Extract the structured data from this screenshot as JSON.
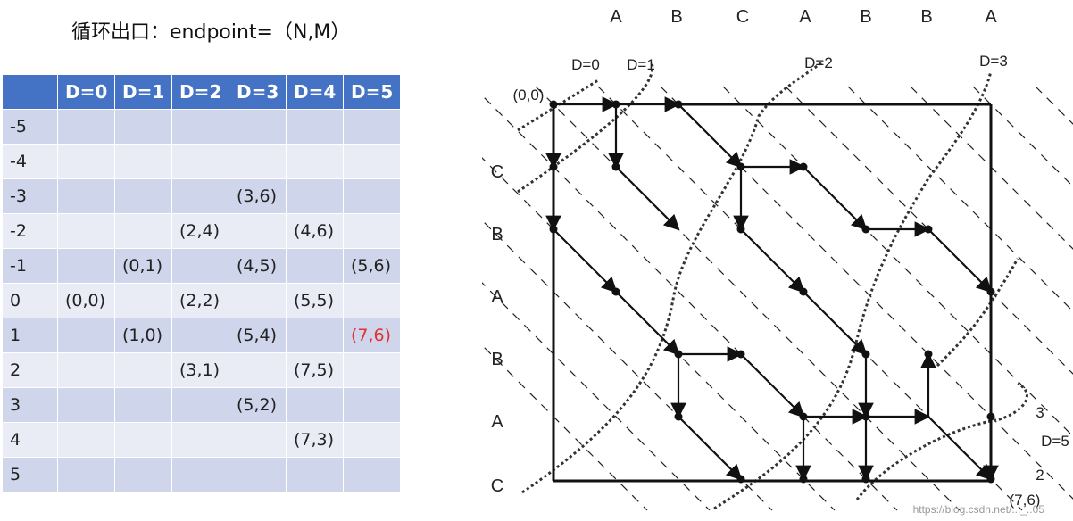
{
  "title": "循环出口：endpoint=（N,M）",
  "table": {
    "headers": [
      "",
      "D=0",
      "D=1",
      "D=2",
      "D=3",
      "D=4",
      "D=5"
    ],
    "rows": [
      {
        "k": "-5",
        "cells": [
          "",
          "",
          "",
          "",
          "",
          ""
        ]
      },
      {
        "k": "-4",
        "cells": [
          "",
          "",
          "",
          "",
          "",
          ""
        ]
      },
      {
        "k": "-3",
        "cells": [
          "",
          "",
          "",
          "(3,6)",
          "",
          ""
        ]
      },
      {
        "k": "-2",
        "cells": [
          "",
          "",
          "(2,4)",
          "",
          "(4,6)",
          ""
        ]
      },
      {
        "k": "-1",
        "cells": [
          "",
          "(0,1)",
          "",
          "(4,5)",
          "",
          "(5,6)"
        ]
      },
      {
        "k": "0",
        "cells": [
          "(0,0)",
          "",
          "(2,2)",
          "",
          "(5,5)",
          ""
        ]
      },
      {
        "k": "1",
        "cells": [
          "",
          "(1,0)",
          "",
          "(5,4)",
          "",
          "(7,6)"
        ]
      },
      {
        "k": "2",
        "cells": [
          "",
          "",
          "(3,1)",
          "",
          "(7,5)",
          ""
        ]
      },
      {
        "k": "3",
        "cells": [
          "",
          "",
          "",
          "(5,2)",
          "",
          ""
        ]
      },
      {
        "k": "4",
        "cells": [
          "",
          "",
          "",
          "",
          "(7,3)",
          ""
        ]
      },
      {
        "k": "5",
        "cells": [
          "",
          "",
          "",
          "",
          "",
          ""
        ]
      }
    ],
    "highlight": {
      "row": 6,
      "col": 5,
      "color": "#e03030"
    }
  },
  "diagram": {
    "top_labels": [
      "A",
      "B",
      "C",
      "A",
      "B",
      "B",
      "A"
    ],
    "left_labels": [
      "C",
      "B",
      "A",
      "B",
      "A",
      "C"
    ],
    "d_labels": [
      "D=0",
      "D=1",
      "D=2",
      "D=3"
    ],
    "origin_label": "(0,0)",
    "end_label": "(7,6)",
    "right_labels": [
      "3",
      "D=5",
      "2"
    ],
    "watermark": "https://blog.csdn.net/..._..05"
  }
}
